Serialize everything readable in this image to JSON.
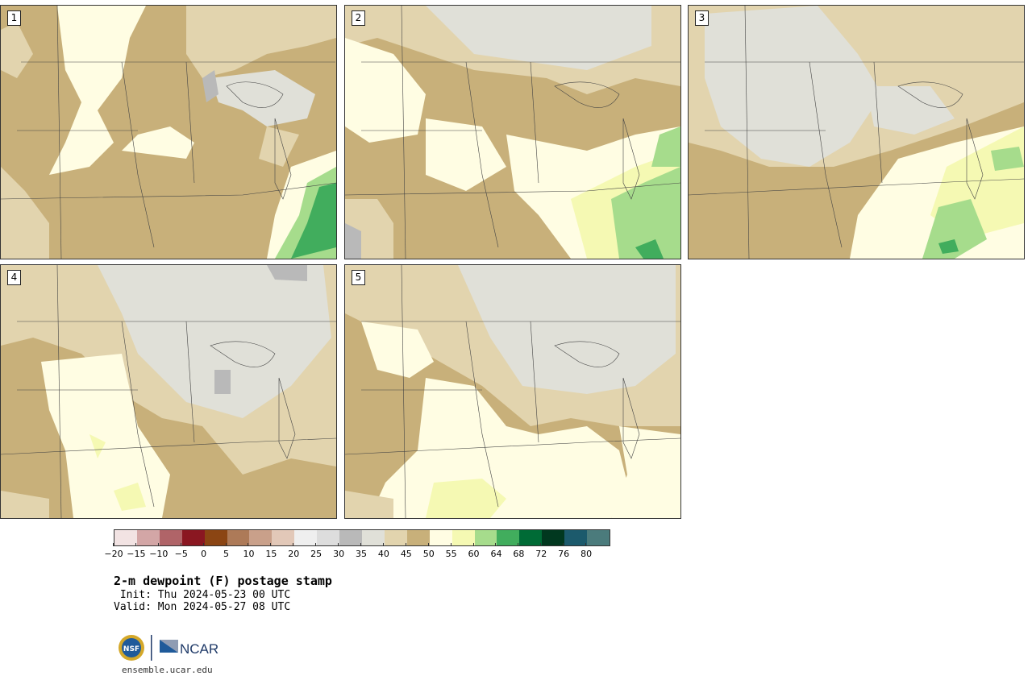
{
  "panels": [
    {
      "id": "1"
    },
    {
      "id": "2"
    },
    {
      "id": "3"
    },
    {
      "id": "4"
    },
    {
      "id": "5"
    }
  ],
  "colors": {
    "background_brown": "#c8b07a",
    "light_tan": "#e2d4ae",
    "cream": "#fffde3",
    "gray_light": "#e0e0d8",
    "gray_mid": "#b9b9b9",
    "pale_yellow": "#f5f9b3",
    "green_light": "#a6dc8c",
    "green_mid": "#41ad5d",
    "green_dark": "#006b36"
  },
  "colorbar": {
    "colors": [
      "#f2e3e3",
      "#d3a6a6",
      "#b06468",
      "#8a1721",
      "#8b4513",
      "#ad7a58",
      "#c9a08a",
      "#e2c8b8",
      "#efefef",
      "#dddddd",
      "#b9b9b9",
      "#e0e0d8",
      "#e2d4ae",
      "#c8b07a",
      "#fffde3",
      "#f5f9b3",
      "#a6dc8c",
      "#41ad5d",
      "#006b36",
      "#01381f",
      "#1c5a6c",
      "#4b7b7c"
    ],
    "ticks": [
      "−20",
      "−15",
      "−10",
      "−5",
      "0",
      "5",
      "10",
      "15",
      "20",
      "25",
      "30",
      "35",
      "40",
      "45",
      "50",
      "55",
      "60",
      "64",
      "68",
      "72",
      "76",
      "80"
    ]
  },
  "title": "2-m dewpoint (F) postage stamp",
  "init": " Init: Thu 2024-05-23 00 UTC",
  "valid": "Valid: Mon 2024-05-27 08 UTC",
  "logo": {
    "nsf": "NSF",
    "ncar": "NCAR",
    "icon": "nsf-ncar-logo"
  },
  "url": "ensemble.ucar.edu"
}
